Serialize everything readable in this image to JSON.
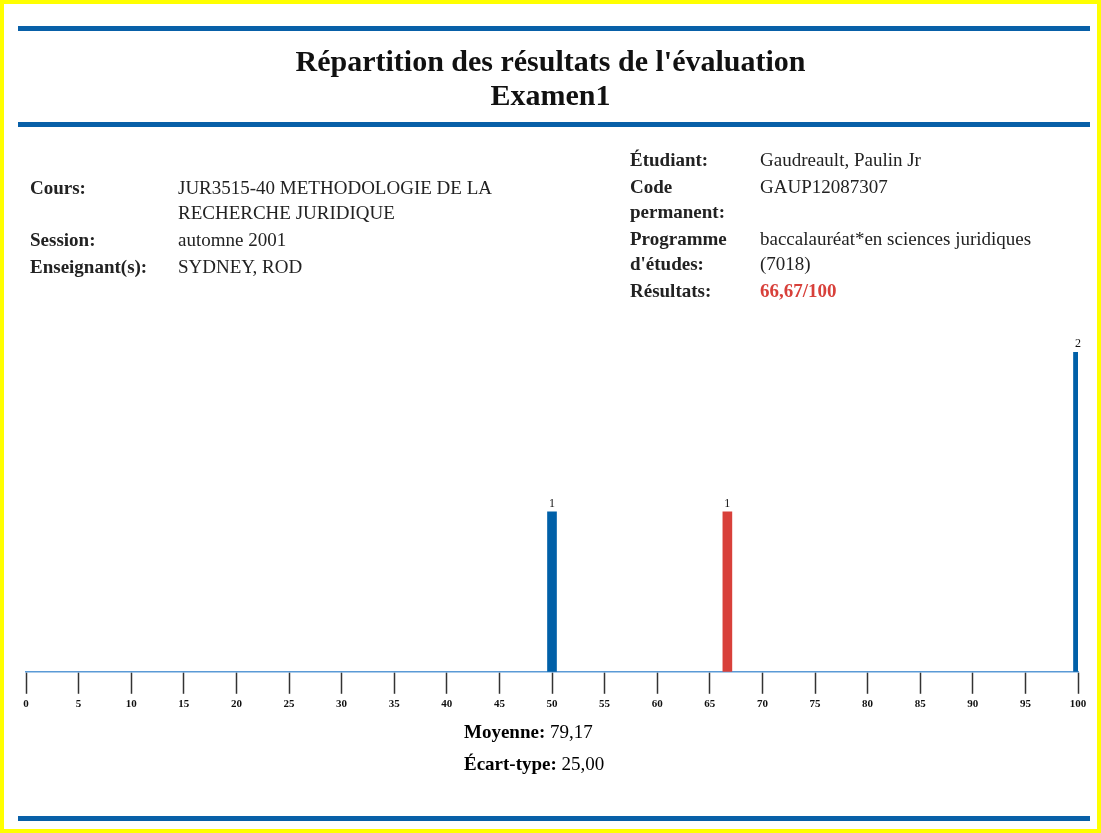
{
  "chart_data": {
    "type": "bar",
    "title": "Répartition des résultats de l'évaluation",
    "subtitle": "Examen1",
    "annotations": [
      "Cours:",
      "JUR3515-40 METHODOLOGIE DE LA RECHERCHE JURIDIQUE",
      "Session:",
      "automne 2001",
      "Enseignant(s):",
      "SYDNEY, ROD",
      "Étudiant:",
      "Gaudreault, Paulin Jr",
      "Code permanent:",
      "GAUP12087307",
      "Programme d'études:",
      "baccalauréat*en sciences juridiques (7018)",
      "Résultats:",
      "66,67/100",
      "Moyenne:",
      "79,17",
      "Écart-type:",
      "25,00"
    ],
    "x": [
      50,
      66.67,
      100
    ],
    "values": [
      1,
      1,
      2
    ],
    "colors": [
      "#0060a8",
      "#d8403a",
      "#0060a8"
    ],
    "xlim": [
      0,
      100
    ],
    "xticks": [
      0,
      5,
      10,
      15,
      20,
      25,
      30,
      35,
      40,
      45,
      50,
      55,
      60,
      65,
      70,
      75,
      80,
      85,
      90,
      95,
      100
    ],
    "tick_labels": "x",
    "grid": false,
    "legend": false,
    "data_labels": true
  }
}
